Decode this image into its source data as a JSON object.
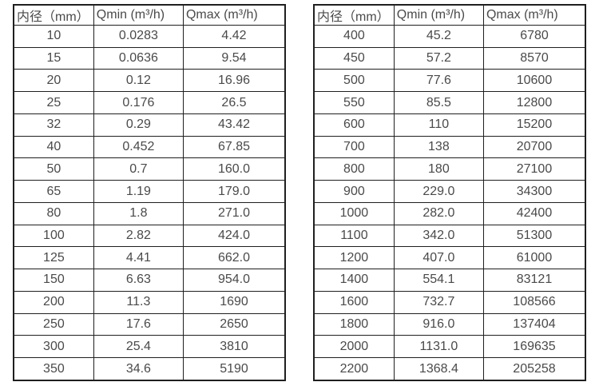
{
  "page": {
    "background": "#ffffff",
    "border_color": "#1f1f1f",
    "text_color": "#4a4a4a"
  },
  "tables": [
    {
      "title": "small-diameter-flow-ranges",
      "headers": [
        "内径（mm）",
        "Qmin (m³/h)",
        "Qmax (m³/h)"
      ],
      "rows": [
        [
          "10",
          "0.0283",
          "4.42"
        ],
        [
          "15",
          "0.0636",
          "9.54"
        ],
        [
          "20",
          "0.12",
          "16.96"
        ],
        [
          "25",
          "0.176",
          "26.5"
        ],
        [
          "32",
          "0.29",
          "43.42"
        ],
        [
          "40",
          "0.452",
          "67.85"
        ],
        [
          "50",
          "0.7",
          "160.0"
        ],
        [
          "65",
          "1.19",
          "179.0"
        ],
        [
          "80",
          "1.8",
          "271.0"
        ],
        [
          "100",
          "2.82",
          "424.0"
        ],
        [
          "125",
          "4.41",
          "662.0"
        ],
        [
          "150",
          "6.63",
          "954.0"
        ],
        [
          "200",
          "11.3",
          "1690"
        ],
        [
          "250",
          "17.6",
          "2650"
        ],
        [
          "300",
          "25.4",
          "3810"
        ],
        [
          "350",
          "34.6",
          "5190"
        ]
      ]
    },
    {
      "title": "large-diameter-flow-ranges",
      "headers": [
        "内径（mm）",
        "Qmin (m³/h)",
        "Qmax (m³/h)"
      ],
      "rows": [
        [
          "400",
          "45.2",
          "6780"
        ],
        [
          "450",
          "57.2",
          "8570"
        ],
        [
          "500",
          "77.6",
          "10600"
        ],
        [
          "550",
          "85.5",
          "12800"
        ],
        [
          "600",
          "110",
          "15200"
        ],
        [
          "700",
          "138",
          "20700"
        ],
        [
          "800",
          "180",
          "27100"
        ],
        [
          "900",
          "229.0",
          "34300"
        ],
        [
          "1000",
          "282.0",
          "42400"
        ],
        [
          "1100",
          "342.0",
          "51300"
        ],
        [
          "1200",
          "407.0",
          "61000"
        ],
        [
          "1400",
          "554.1",
          "83121"
        ],
        [
          "1600",
          "732.7",
          "108566"
        ],
        [
          "1800",
          "916.0",
          "137404"
        ],
        [
          "2000",
          "1131.0",
          "169635"
        ],
        [
          "2200",
          "1368.4",
          "205258"
        ]
      ]
    }
  ]
}
